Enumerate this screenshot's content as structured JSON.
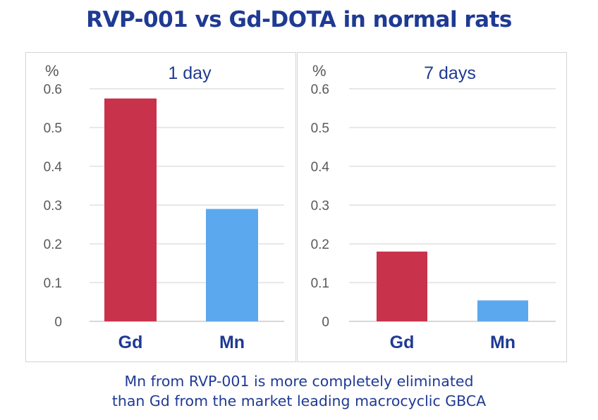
{
  "title": "RVP-001 vs Gd-DOTA in normal rats",
  "caption": {
    "line1": "Mn from RVP-001 is more completely eliminated",
    "line2": "than Gd from the market leading macrocyclic GBCA"
  },
  "colors": {
    "gd": "#c8324a",
    "mn": "#5ca8ee",
    "title": "#1f3a93",
    "axis": "#595959",
    "grid": "#d9d9d9"
  },
  "chart_data": [
    {
      "type": "bar",
      "title": "1 day",
      "ylabel": "%",
      "ylim": [
        0,
        0.6
      ],
      "yticks": [
        "0",
        "0.1",
        "0.2",
        "0.3",
        "0.4",
        "0.5",
        "0.6"
      ],
      "categories": [
        "Gd",
        "Mn"
      ],
      "values": [
        0.575,
        0.29
      ],
      "grid": true
    },
    {
      "type": "bar",
      "title": "7 days",
      "ylabel": "%",
      "ylim": [
        0,
        0.6
      ],
      "yticks": [
        "0",
        "0.1",
        "0.2",
        "0.3",
        "0.4",
        "0.5",
        "0.6"
      ],
      "categories": [
        "Gd",
        "Mn"
      ],
      "values": [
        0.18,
        0.054
      ],
      "grid": true
    }
  ]
}
